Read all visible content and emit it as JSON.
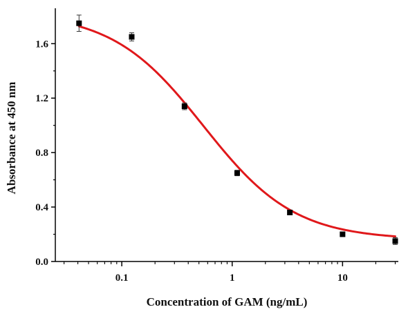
{
  "chart_data": {
    "type": "scatter",
    "title": "",
    "xlabel": "Concentration of GAM (ng/mL)",
    "ylabel": "Absorbance at 450 nm",
    "x_scale": "log",
    "xlim": [
      0.025,
      32
    ],
    "ylim": [
      0,
      1.86
    ],
    "x_ticks": [
      0.1,
      1,
      10
    ],
    "x_tick_labels": [
      "0.1",
      "1",
      "10"
    ],
    "y_ticks": [
      0,
      0.4,
      0.8,
      1.2,
      1.6
    ],
    "y_tick_labels": [
      "0.0",
      "0.4",
      "0.8",
      "1.2",
      "1.6"
    ],
    "grid": false,
    "legend": "none",
    "series": [
      {
        "kind": "points",
        "marker": "square",
        "color": "#000000",
        "x": [
          0.041,
          0.123,
          0.37,
          1.11,
          3.33,
          10,
          30
        ],
        "y": [
          1.75,
          1.65,
          1.14,
          0.65,
          0.36,
          0.2,
          0.15
        ],
        "error": [
          0.06,
          0.03,
          0.025,
          0.02,
          0.015,
          0.01,
          0.025
        ]
      },
      {
        "kind": "fit-curve",
        "color": "#e0181b",
        "model": "four-parameter logistic",
        "top": 1.83,
        "bottom": 0.16,
        "ec50": 0.55,
        "hill": 1.05
      }
    ]
  }
}
